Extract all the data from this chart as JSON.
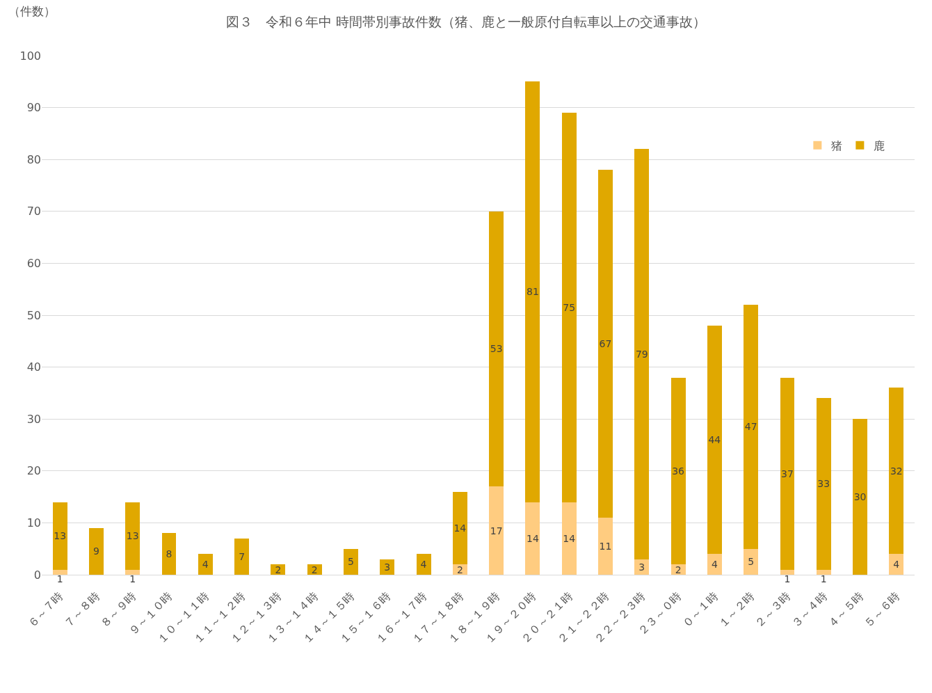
{
  "chart_data": {
    "type": "bar",
    "title": "図３　令和６年中 時間帯別事故件数（猪、鹿と一般原付自転車以上の交通事故）",
    "ylabel": "（件数）",
    "categories": [
      "６～７時",
      "７～８時",
      "８～９時",
      "９～１０時",
      "１０～１１時",
      "１１～１２時",
      "１２～１３時",
      "１３～１４時",
      "１４～１５時",
      "１５～１６時",
      "１６～１７時",
      "１７～１８時",
      "１８～１９時",
      "１９～２０時",
      "２０～２１時",
      "２１～２２時",
      "２２～２３時",
      "２３～０時",
      "０～１時",
      "１～２時",
      "２～３時",
      "３～４時",
      "４～５時",
      "５～６時"
    ],
    "stacked": true,
    "series": [
      {
        "name": "猪",
        "color": "#ffcc80",
        "values": [
          1,
          0,
          1,
          0,
          0,
          0,
          0,
          0,
          0,
          0,
          0,
          2,
          17,
          14,
          14,
          11,
          3,
          2,
          4,
          5,
          1,
          1,
          0,
          4
        ],
        "value_labels": [
          "1",
          null,
          "1",
          null,
          null,
          null,
          null,
          null,
          null,
          null,
          null,
          "2",
          "17",
          "14",
          "14",
          "11",
          "3",
          "2",
          "4",
          "5",
          "1",
          "1",
          null,
          "4"
        ]
      },
      {
        "name": "鹿",
        "color": "#e0a800",
        "values": [
          13,
          9,
          13,
          8,
          4,
          7,
          2,
          2,
          5,
          3,
          4,
          14,
          53,
          81,
          75,
          67,
          79,
          36,
          44,
          47,
          37,
          33,
          30,
          32
        ],
        "value_labels": [
          "13",
          "9",
          "13",
          "8",
          "4",
          "7",
          "2",
          "2",
          "5",
          "3",
          "4",
          "14",
          "53",
          "81",
          "75",
          "67",
          "79",
          "36",
          "44",
          "47",
          "37",
          "33",
          "30",
          "32"
        ]
      }
    ],
    "ylim": [
      0,
      100
    ],
    "yticks": [
      0,
      10,
      20,
      30,
      40,
      50,
      60,
      70,
      80,
      90,
      100
    ],
    "grid": "y",
    "legend": "top right"
  }
}
